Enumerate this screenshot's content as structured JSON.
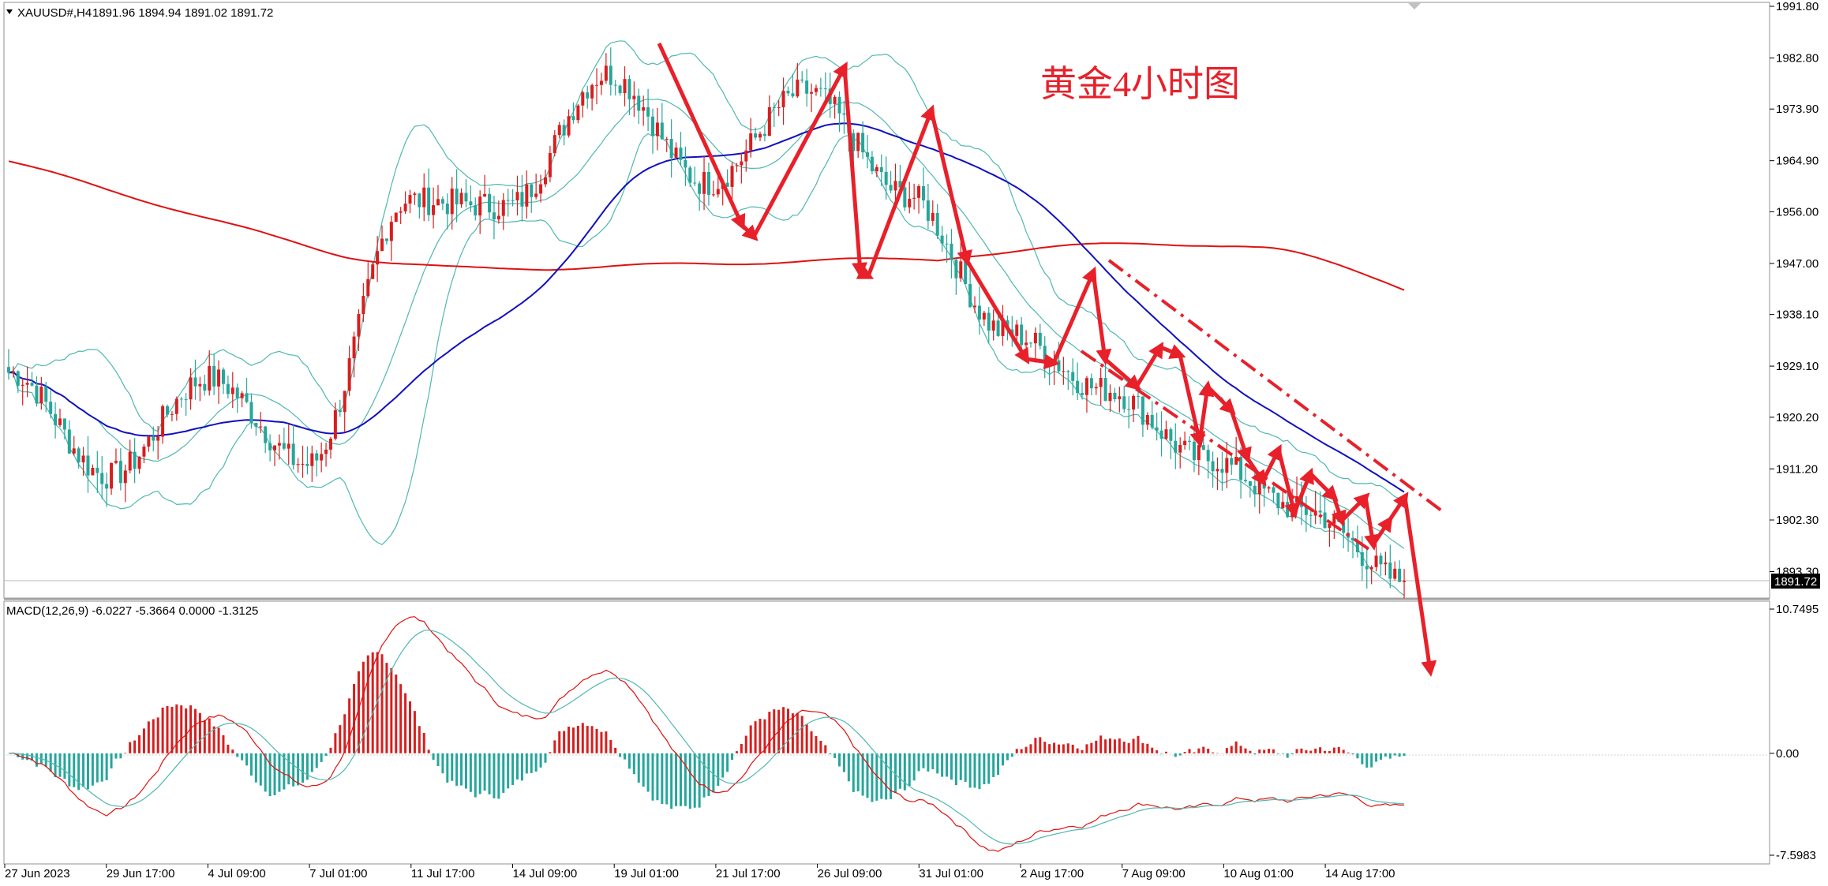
{
  "header": {
    "symbol": "XAUUSD#,H4",
    "ohlc": "1891.96 1894.94 1891.02 1891.72",
    "collapse_icon": "triangle-down-icon"
  },
  "annotation": {
    "title": "黄金4小时图"
  },
  "macd_header": "MACD(12,26,9) -6.0227 -5.3664 0.0000 -1.3125",
  "price_axis": {
    "ticks": [
      "1991.80",
      "1982.80",
      "1973.90",
      "1964.90",
      "1956.00",
      "1947.00",
      "1938.10",
      "1929.10",
      "1920.20",
      "1911.20",
      "1902.30",
      "1893.30"
    ],
    "current_price": "1891.72"
  },
  "macd_axis": {
    "ticks": [
      "10.7495",
      "0.00",
      "-7.5983"
    ]
  },
  "time_axis": {
    "labels": [
      "27 Jun 2023",
      "29 Jun 17:00",
      "4 Jul 09:00",
      "7 Jul 01:00",
      "11 Jul 17:00",
      "14 Jul 09:00",
      "19 Jul 01:00",
      "21 Jul 17:00",
      "26 Jul 09:00",
      "31 Jul 01:00",
      "2 Aug 17:00",
      "7 Aug 09:00",
      "10 Aug 01:00",
      "14 Aug 17:00"
    ]
  },
  "colors": {
    "bull": "#d81e1e",
    "bear": "#26a69a",
    "ma_red": "#e01010",
    "ma_blue": "#1010c0",
    "bollinger": "#4fb8b0",
    "arrow": "#e8202a"
  },
  "chart_data": {
    "type": "candlestick",
    "symbol": "XAUUSD#",
    "timeframe": "H4",
    "ylim": [
      1891.72,
      1991.8
    ],
    "last": {
      "open": 1891.96,
      "high": 1894.94,
      "low": 1891.02,
      "close": 1891.72
    },
    "close_path": [
      [
        "27 Jun 2023",
        1928
      ],
      [
        "29 Jun 17:00",
        1910
      ],
      [
        "4 Jul 09:00",
        1927
      ],
      [
        "7 Jul 01:00",
        1912
      ],
      [
        "11 Jul 17:00",
        1958
      ],
      [
        "14 Jul 09:00",
        1957
      ],
      [
        "19 Jul 01:00",
        1980
      ],
      [
        "21 Jul 17:00",
        1961
      ],
      [
        "26 Jul 09:00",
        1977
      ],
      [
        "31 Jul 01:00",
        1959
      ],
      [
        "2 Aug 17:00",
        1935
      ],
      [
        "7 Aug 09:00",
        1925
      ],
      [
        "10 Aug 01:00",
        1913
      ],
      [
        "14 Aug 17:00",
        1904
      ],
      [
        "end",
        1891.72
      ]
    ],
    "indicators": [
      "Bollinger Bands",
      "Moving Average (blue)",
      "Moving Average (red)"
    ],
    "macd": {
      "params": "12,26,9",
      "values": [
        -6.0227,
        -5.3664,
        0.0,
        -1.3125
      ],
      "ylim": [
        -7.5983,
        10.7495
      ]
    }
  }
}
